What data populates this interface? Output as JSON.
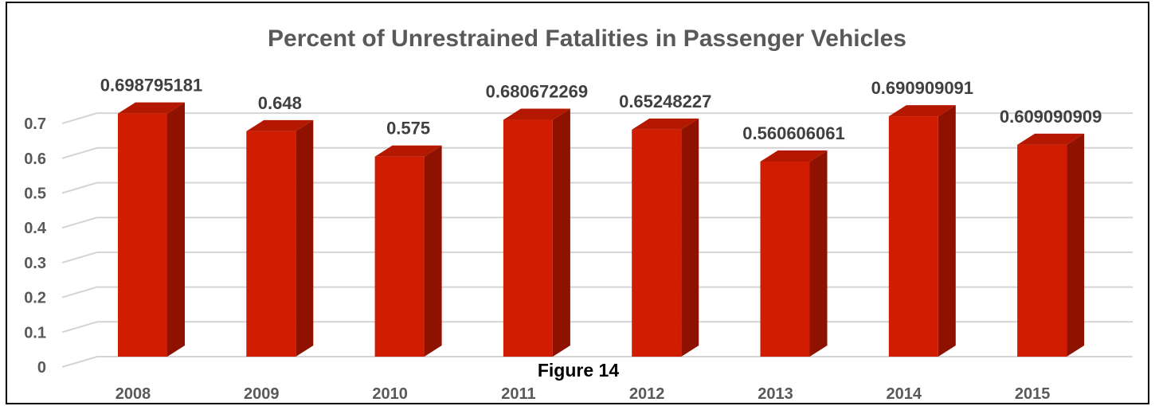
{
  "chart_data": {
    "type": "bar",
    "title": "Percent of Unrestrained Fatalities in Passenger Vehicles",
    "categories": [
      "2008",
      "2009",
      "2010",
      "2011",
      "2012",
      "2013",
      "2014",
      "2015"
    ],
    "values": [
      0.698795181,
      0.648,
      0.575,
      0.680672269,
      0.65248227,
      0.560606061,
      0.690909091,
      0.609090909
    ],
    "data_labels": [
      "0.698795181",
      "0.648",
      "0.575",
      "0.680672269",
      "0.65248227",
      "0.560606061",
      "0.690909091",
      "0.609090909"
    ],
    "y_ticks": [
      "0",
      "0.1",
      "0.2",
      "0.3",
      "0.4",
      "0.5",
      "0.6",
      "0.7"
    ],
    "ylim": [
      0,
      0.7
    ],
    "xlabel": "",
    "ylabel": "",
    "grid": true,
    "legend": "none",
    "style": "3d-column",
    "colors": {
      "front": "#d01c00",
      "side": "#8f1200",
      "top": "#b41800",
      "grid": "#d4d4d4"
    }
  },
  "caption": "Figure 14"
}
